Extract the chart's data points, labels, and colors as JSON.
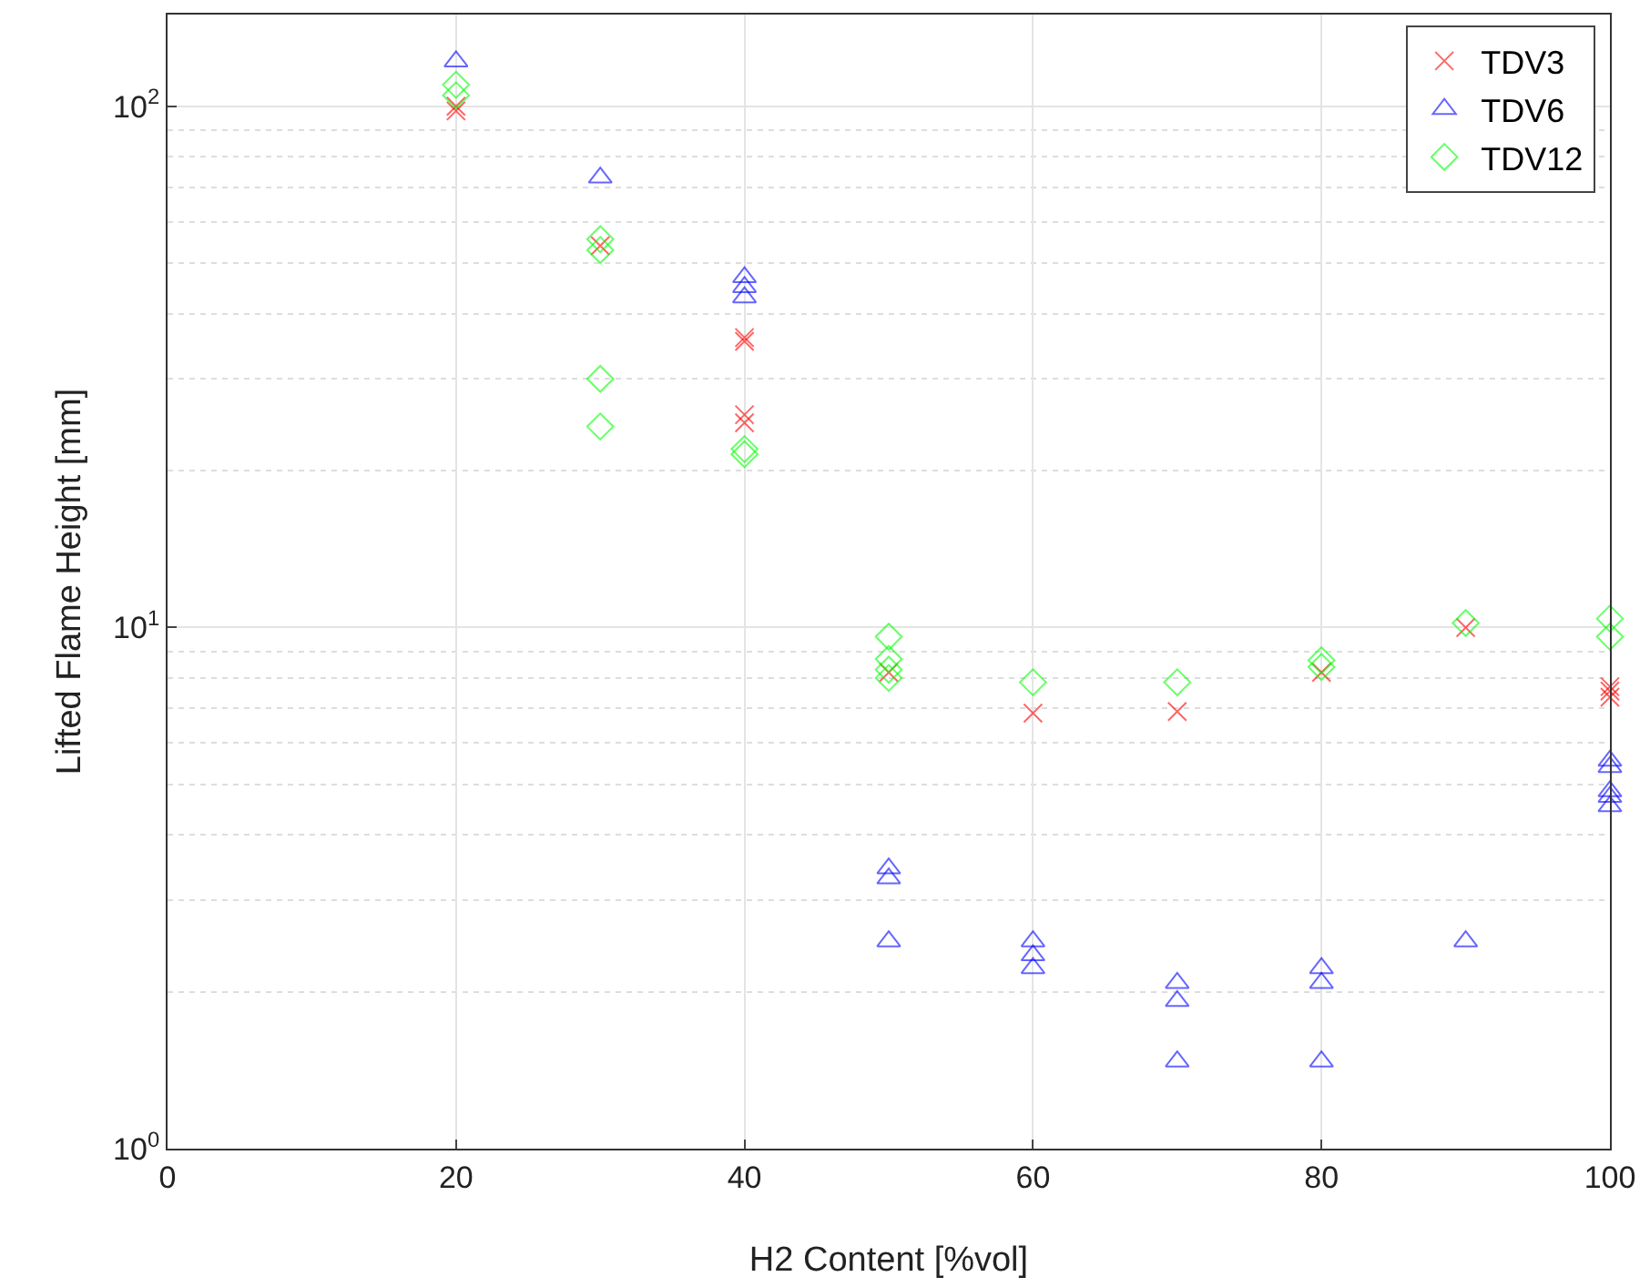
{
  "chart_data": {
    "type": "scatter",
    "xlabel": "H2 Content [%vol]",
    "ylabel": "Lifted Flame Height [mm]",
    "log": "y",
    "grid": true,
    "legend": "top right",
    "xlim": [
      0,
      100
    ],
    "xticks": [
      0,
      20,
      40,
      60,
      80,
      100
    ],
    "ylim": [
      1,
      150
    ],
    "yticks": [
      {
        "value": 1,
        "label": "10$^{0}$"
      },
      {
        "value": 10,
        "label": "10$^{1}$"
      },
      {
        "value": 100,
        "label": "10$^{2}$"
      }
    ],
    "series": [
      {
        "name": "TDV3",
        "color": "#ff0000",
        "marker": "cross",
        "x": [
          20,
          20,
          30,
          40,
          40,
          40,
          40,
          50,
          60,
          70,
          80,
          90,
          100,
          100,
          100
        ],
        "values": [
          100,
          98,
          54,
          36,
          35.4,
          25.6,
          24.7,
          8.2,
          6.85,
          6.9,
          8.2,
          10,
          7.7,
          7.55,
          7.35
        ]
      },
      {
        "name": "TDV6",
        "color": "#0000ff",
        "marker": "triangle",
        "x": [
          20,
          30,
          40,
          40,
          40,
          50,
          50,
          50,
          60,
          60,
          60,
          70,
          70,
          70,
          80,
          80,
          80,
          90,
          100,
          100,
          100,
          100,
          100
        ],
        "values": [
          122,
          73,
          47,
          45,
          43,
          3.45,
          3.3,
          2.5,
          2.5,
          2.35,
          2.22,
          2.08,
          1.92,
          1.47,
          2.22,
          2.08,
          1.47,
          2.5,
          5.55,
          5.4,
          4.85,
          4.73,
          4.54
        ]
      },
      {
        "name": "TDV12",
        "color": "#00ff00",
        "marker": "diamond",
        "x": [
          20,
          20,
          30,
          30,
          30,
          30,
          40,
          40,
          50,
          50,
          50,
          50,
          60,
          70,
          80,
          80,
          90,
          100,
          100
        ],
        "values": [
          110,
          105,
          55.6,
          53,
          30,
          24.3,
          22,
          21.5,
          9.6,
          8.7,
          8.3,
          8,
          7.85,
          7.85,
          8.65,
          8.4,
          10.2,
          10.4,
          9.6
        ]
      }
    ]
  }
}
